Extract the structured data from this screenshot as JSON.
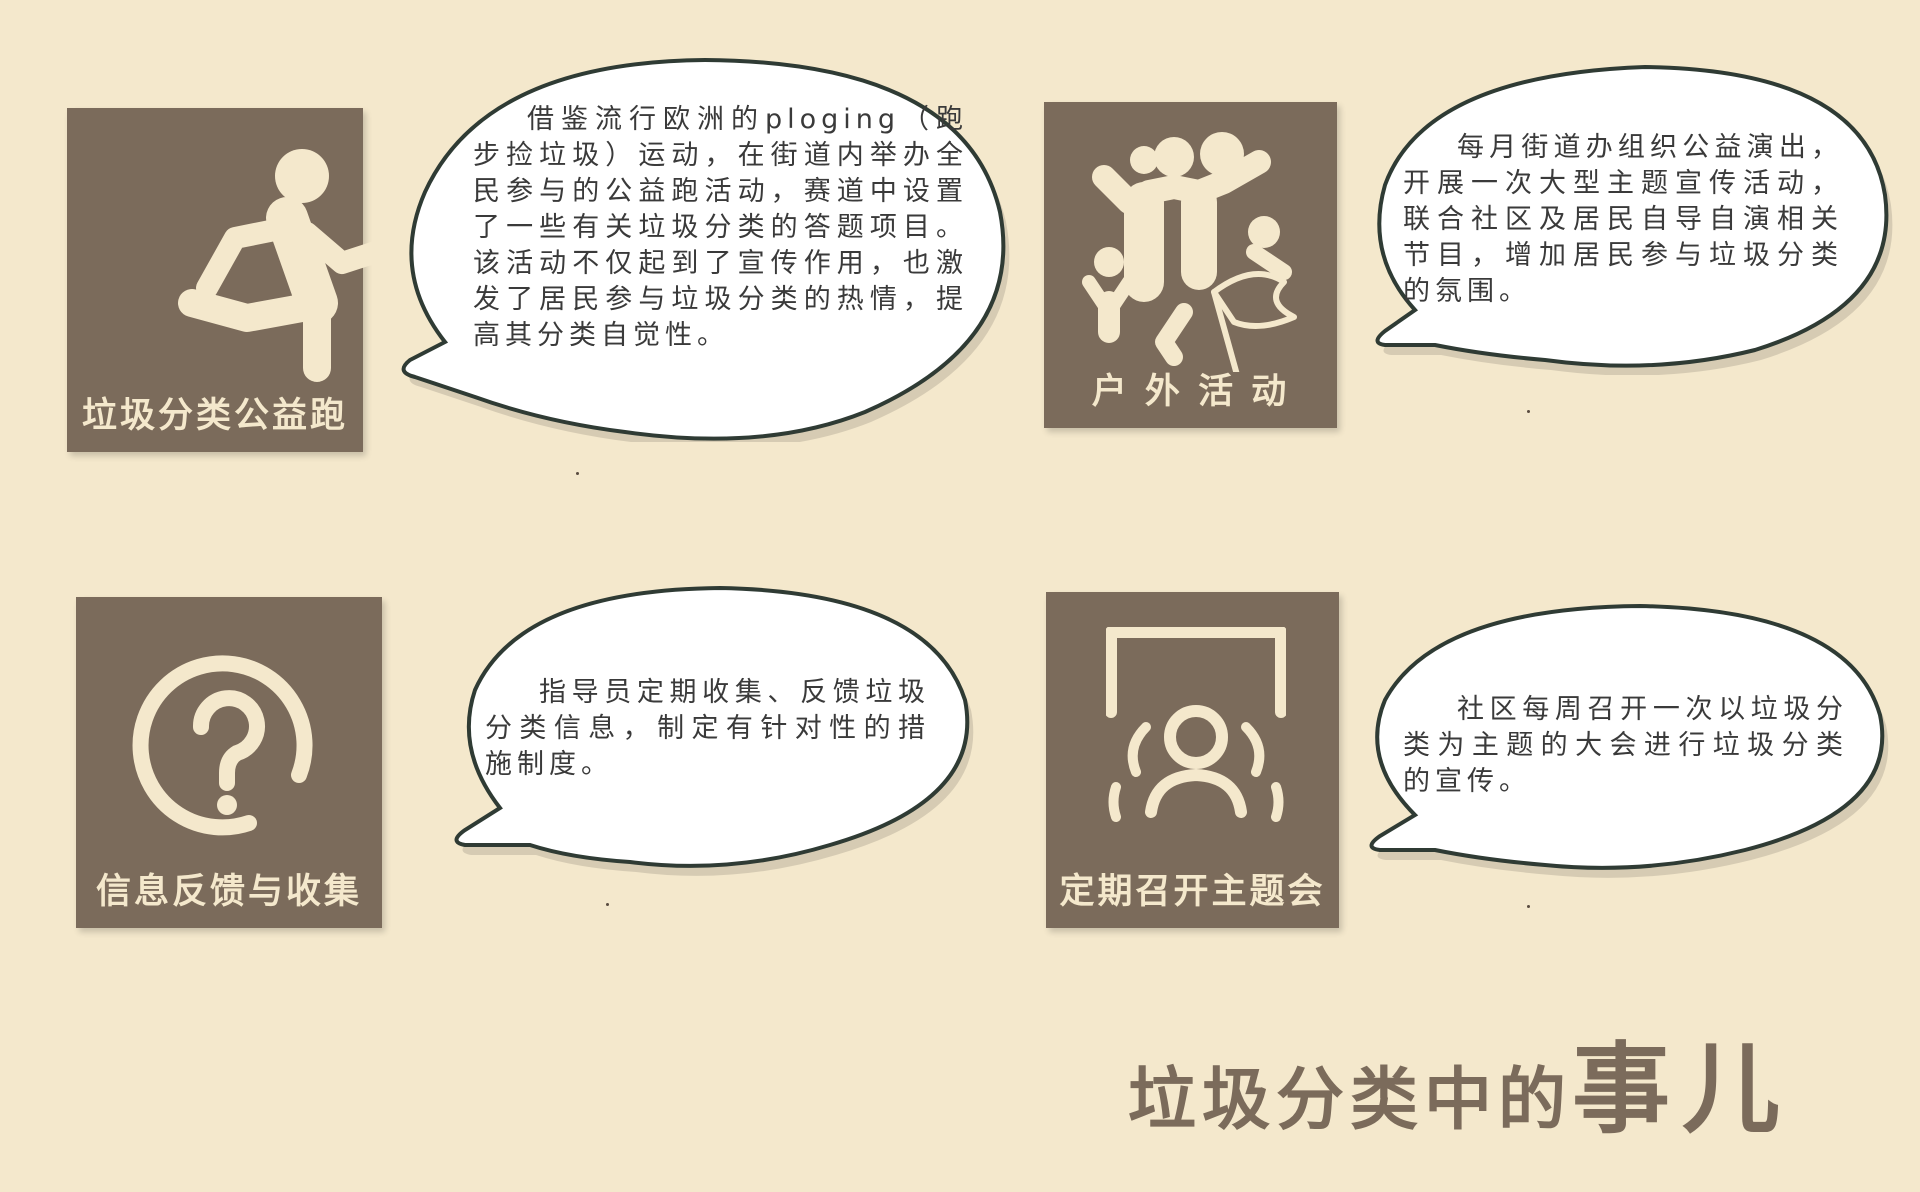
{
  "colors": {
    "background": "#f4e8cc",
    "card": "#7b6b5b",
    "card_text": "#f4e8cc",
    "bubble": "#ffffff",
    "bubble_stroke": "#2f3b34",
    "title": "#7b6b5b"
  },
  "cards": [
    {
      "label": "垃圾分类公益跑",
      "icon": "running-person-icon"
    },
    {
      "label": "户 外 活 动",
      "icon": "celebrating-crowd-icon"
    },
    {
      "label": "信息反馈与收集",
      "icon": "question-mark-circle-icon"
    },
    {
      "label": "定期召开主题会",
      "icon": "meeting-people-icon"
    }
  ],
  "bubbles": [
    {
      "text": "借鉴流行欧洲的ploging（跑步捡垃圾）运动，在街道内举办全民参与的公益跑活动，赛道中设置了一些有关垃圾分类的答题项目。该活动不仅起到了宣传作用，也激发了居民参与垃圾分类的热情，提高其分类自觉性。"
    },
    {
      "text": "每月街道办组织公益演出，开展一次大型主题宣传活动，联合社区及居民自导自演相关节目，增加居民参与垃圾分类的氛围。"
    },
    {
      "text": "指导员定期收集、反馈垃圾分类信息，制定有针对性的措施制度。"
    },
    {
      "text": "社区每周召开一次以垃圾分类为主题的大会进行垃圾分类的宣传。"
    }
  ],
  "title": {
    "part1": "垃圾分类中的",
    "part2": "事儿"
  }
}
